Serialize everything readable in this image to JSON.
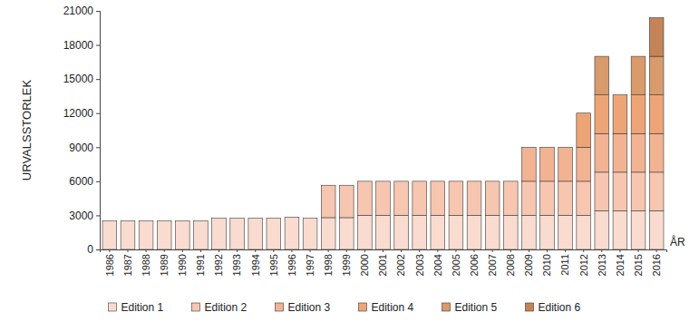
{
  "chart_data": {
    "type": "bar",
    "stacked": true,
    "y_label": "URVALSSTORLEK",
    "x_label": "ÅR",
    "categories": [
      "1986",
      "1987",
      "1988",
      "1989",
      "1990",
      "1991",
      "1992",
      "1993",
      "1994",
      "1995",
      "1996",
      "1997",
      "1998",
      "1999",
      "2000",
      "2001",
      "2002",
      "2003",
      "2004",
      "2005",
      "2006",
      "2007",
      "2008",
      "2009",
      "2010",
      "2011",
      "2012",
      "2013",
      "2014",
      "2015",
      "2016"
    ],
    "series": [
      {
        "name": "Edition 1",
        "color": "#f9dccf",
        "values": [
          2500,
          2500,
          2500,
          2500,
          2500,
          2500,
          2750,
          2750,
          2750,
          2750,
          2850,
          2750,
          2800,
          2800,
          3000,
          3000,
          3000,
          3000,
          3000,
          3000,
          3000,
          3000,
          3000,
          3000,
          3000,
          3000,
          3000,
          3400,
          3400,
          3400,
          3400
        ]
      },
      {
        "name": "Edition 2",
        "color": "#f6c6b0",
        "values": [
          null,
          null,
          null,
          null,
          null,
          null,
          null,
          null,
          null,
          null,
          null,
          null,
          2850,
          2850,
          3000,
          3000,
          3000,
          3000,
          3000,
          3000,
          3000,
          3000,
          3000,
          3000,
          3000,
          3000,
          3000,
          3400,
          3400,
          3400,
          3400
        ]
      },
      {
        "name": "Edition 3",
        "color": "#f2b393",
        "values": [
          null,
          null,
          null,
          null,
          null,
          null,
          null,
          null,
          null,
          null,
          null,
          null,
          null,
          null,
          null,
          null,
          null,
          null,
          null,
          null,
          null,
          null,
          null,
          3000,
          3000,
          3000,
          3000,
          3400,
          3400,
          3400,
          3400
        ]
      },
      {
        "name": "Edition 4",
        "color": "#eda577",
        "values": [
          null,
          null,
          null,
          null,
          null,
          null,
          null,
          null,
          null,
          null,
          null,
          null,
          null,
          null,
          null,
          null,
          null,
          null,
          null,
          null,
          null,
          null,
          null,
          null,
          null,
          null,
          3000,
          3400,
          3400,
          3400,
          3400
        ]
      },
      {
        "name": "Edition 5",
        "color": "#d99a6c",
        "values": [
          null,
          null,
          null,
          null,
          null,
          null,
          null,
          null,
          null,
          null,
          null,
          null,
          null,
          null,
          null,
          null,
          null,
          null,
          null,
          null,
          null,
          null,
          null,
          null,
          null,
          null,
          null,
          3400,
          null,
          3400,
          3400
        ]
      },
      {
        "name": "Edition 6",
        "color": "#c48457",
        "values": [
          null,
          null,
          null,
          null,
          null,
          null,
          null,
          null,
          null,
          null,
          null,
          null,
          null,
          null,
          null,
          null,
          null,
          null,
          null,
          null,
          null,
          null,
          null,
          null,
          null,
          null,
          null,
          null,
          null,
          null,
          3400
        ]
      }
    ],
    "ylim": [
      0,
      21000
    ],
    "yticks": [
      0,
      3000,
      6000,
      9000,
      12000,
      15000,
      18000,
      21000
    ],
    "legend": "bottom"
  }
}
